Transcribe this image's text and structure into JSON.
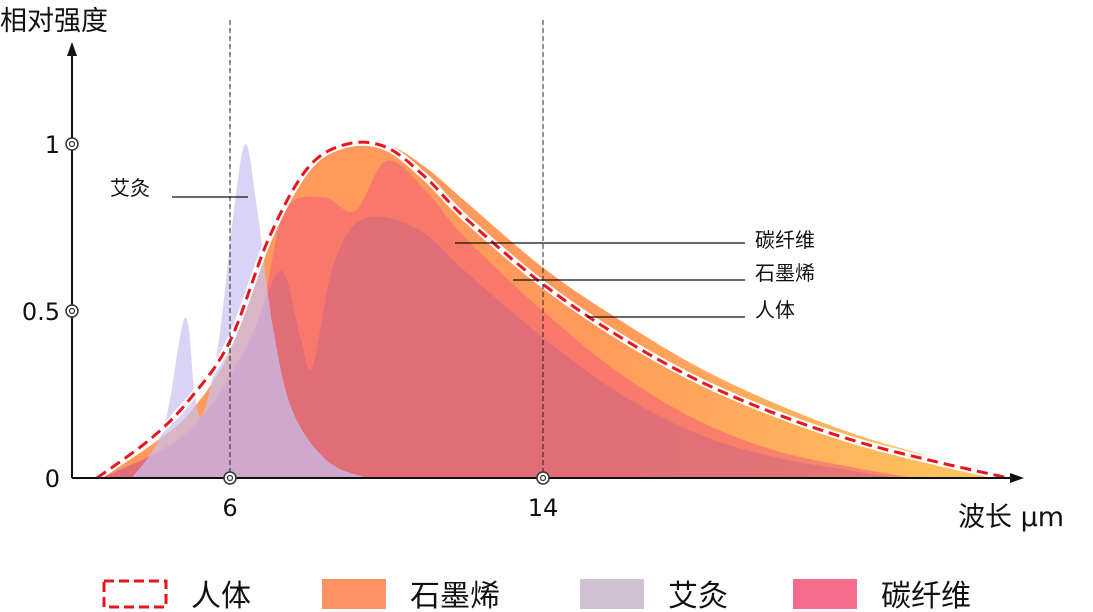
{
  "chart_data": {
    "type": "area",
    "ylabel": "相对强度",
    "xlabel": "波长 μm",
    "xlim": [
      2,
      26.2
    ],
    "ylim": [
      0,
      1.25
    ],
    "x_ticks": [
      {
        "value": 6,
        "label": "6"
      },
      {
        "value": 14,
        "label": "14"
      }
    ],
    "y_ticks": [
      {
        "value": 0,
        "label": "0"
      },
      {
        "value": 0.5,
        "label": "0.5"
      },
      {
        "value": 1,
        "label": "1"
      }
    ],
    "reference_lines_x": [
      6,
      14
    ],
    "grid": false,
    "legend_position": "bottom",
    "series": [
      {
        "name": "石墨烯",
        "style": "area",
        "color": "#ff9a5c",
        "color_end": "#ffc65c",
        "points": [
          [
            2.7,
            0
          ],
          [
            4,
            0.1
          ],
          [
            5,
            0.2
          ],
          [
            6,
            0.38
          ],
          [
            7,
            0.7
          ],
          [
            8,
            0.92
          ],
          [
            9,
            1.0
          ],
          [
            10,
            1.0
          ],
          [
            11,
            0.93
          ],
          [
            12,
            0.83
          ],
          [
            14,
            0.63
          ],
          [
            16,
            0.47
          ],
          [
            18,
            0.33
          ],
          [
            20,
            0.22
          ],
          [
            22,
            0.13
          ],
          [
            24,
            0.06
          ],
          [
            25.5,
            0
          ]
        ]
      },
      {
        "name": "碳纤维",
        "style": "area",
        "color": "#f2557a",
        "points": [
          [
            2.7,
            0
          ],
          [
            4,
            0.07
          ],
          [
            5,
            0.15
          ],
          [
            6,
            0.3
          ],
          [
            6.8,
            0.5
          ],
          [
            7.4,
            0.8
          ],
          [
            8.4,
            0.84
          ],
          [
            9.2,
            0.8
          ],
          [
            10,
            0.95
          ],
          [
            11,
            0.86
          ],
          [
            12,
            0.72
          ],
          [
            14,
            0.5
          ],
          [
            16,
            0.31
          ],
          [
            18,
            0.17
          ],
          [
            20,
            0.08
          ],
          [
            22,
            0.03
          ],
          [
            23.5,
            0
          ]
        ]
      },
      {
        "name": "碳纤维-inner",
        "style": "area",
        "color": "#c8608a",
        "points": [
          [
            2.7,
            0
          ],
          [
            5,
            0.14
          ],
          [
            6.5,
            0.42
          ],
          [
            7.3,
            0.62
          ],
          [
            7.8,
            0.42
          ],
          [
            8.1,
            0.33
          ],
          [
            8.6,
            0.62
          ],
          [
            9.2,
            0.76
          ],
          [
            10,
            0.78
          ],
          [
            11,
            0.73
          ],
          [
            12,
            0.62
          ],
          [
            14,
            0.42
          ],
          [
            16,
            0.25
          ],
          [
            18,
            0.13
          ],
          [
            20,
            0.06
          ],
          [
            22,
            0.02
          ],
          [
            23,
            0
          ]
        ]
      },
      {
        "name": "艾灸",
        "style": "area",
        "color": "#c9c2f2",
        "points": [
          [
            3.5,
            0
          ],
          [
            4.3,
            0.15
          ],
          [
            4.85,
            0.48
          ],
          [
            5.1,
            0.25
          ],
          [
            5.3,
            0.19
          ],
          [
            5.7,
            0.4
          ],
          [
            6.1,
            0.8
          ],
          [
            6.4,
            1.0
          ],
          [
            6.7,
            0.8
          ],
          [
            7.1,
            0.45
          ],
          [
            7.6,
            0.2
          ],
          [
            8.5,
            0.05
          ],
          [
            9.5,
            0
          ]
        ]
      },
      {
        "name": "人体",
        "style": "dashed-line",
        "color": "#e8141e",
        "points": [
          [
            2.6,
            0
          ],
          [
            4,
            0.12
          ],
          [
            5,
            0.24
          ],
          [
            6,
            0.41
          ],
          [
            7,
            0.72
          ],
          [
            8,
            0.93
          ],
          [
            9,
            1.0
          ],
          [
            10,
            0.99
          ],
          [
            11,
            0.9
          ],
          [
            12,
            0.78
          ],
          [
            14,
            0.58
          ],
          [
            16,
            0.42
          ],
          [
            18,
            0.29
          ],
          [
            20,
            0.19
          ],
          [
            22,
            0.11
          ],
          [
            24,
            0.05
          ],
          [
            25.9,
            0
          ]
        ]
      }
    ],
    "annotations": [
      {
        "text": "艾灸",
        "x": 6.4,
        "y": 0.85
      },
      {
        "text": "碳纤维",
        "x": 11.7,
        "y": 0.7
      },
      {
        "text": "石墨烯",
        "x": 13.2,
        "y": 0.59
      },
      {
        "text": "人体",
        "x": 15.1,
        "y": 0.48
      }
    ],
    "legend": [
      {
        "label": "人体",
        "swatch": "dashed",
        "color": "#e8141e"
      },
      {
        "label": "石墨烯",
        "swatch": "fill",
        "color": "#ff9264"
      },
      {
        "label": "艾灸",
        "swatch": "fill",
        "color": "#cfc0d2"
      },
      {
        "label": "碳纤维",
        "swatch": "fill",
        "color": "#f56b8b"
      }
    ]
  }
}
